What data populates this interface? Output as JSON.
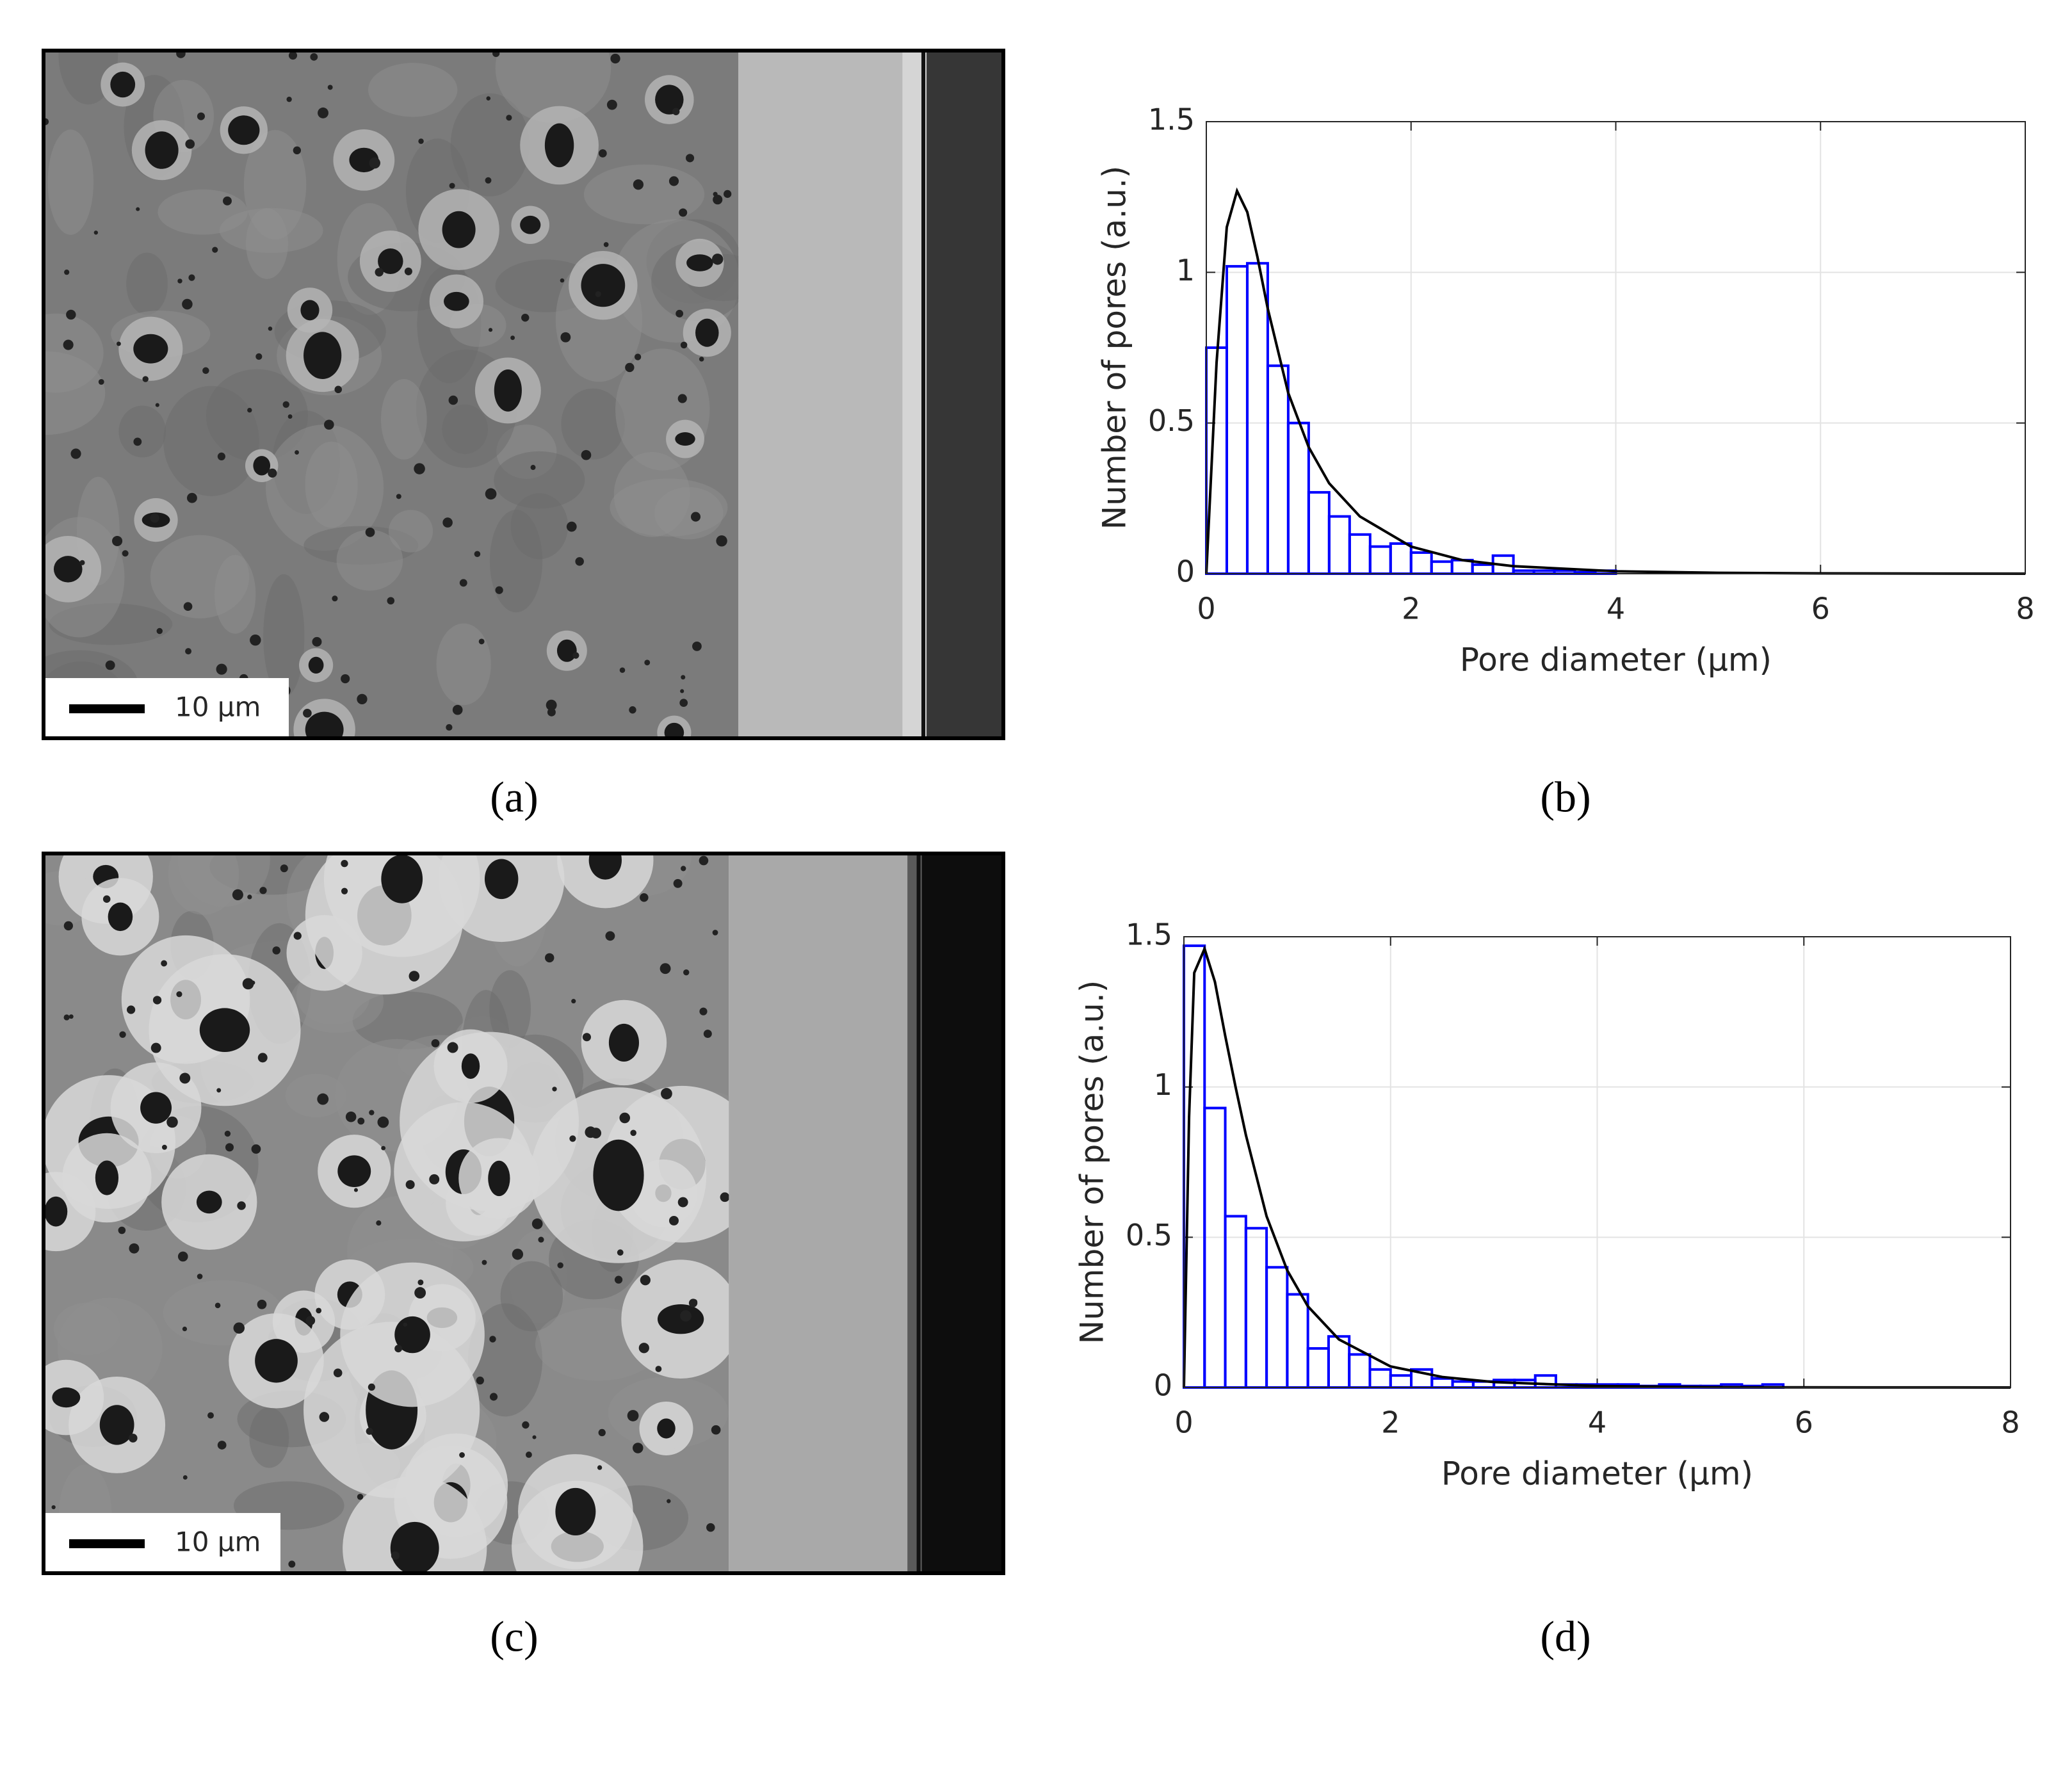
{
  "panels": [
    {
      "label": "(a)",
      "scale_bar": "10 μm"
    },
    {
      "label": "(b)"
    },
    {
      "label": "(c)",
      "scale_bar": "10 μm"
    },
    {
      "label": "(d)"
    }
  ],
  "chart_data": [
    {
      "type": "histogram",
      "xlabel": "Pore diameter (μm)",
      "ylabel": "Number of pores (a.u.)",
      "bins": [
        0,
        0.2,
        0.4,
        0.6,
        0.8,
        1.0,
        1.2,
        1.4,
        1.6,
        1.8,
        2.0,
        2.2,
        2.4,
        2.6,
        2.8,
        3.0,
        3.2,
        3.4,
        3.6,
        3.8,
        4.0
      ],
      "values": [
        0.75,
        1.02,
        1.03,
        0.69,
        0.5,
        0.27,
        0.19,
        0.13,
        0.09,
        0.1,
        0.07,
        0.04,
        0.045,
        0.03,
        0.06,
        0.01,
        0.01,
        0.01,
        0.005,
        0.01
      ],
      "color": "#0000ff",
      "fit": {
        "x": [
          0,
          0.1,
          0.2,
          0.3,
          0.4,
          0.5,
          0.6,
          0.8,
          1.0,
          1.2,
          1.5,
          2,
          2.5,
          3,
          4,
          5,
          6,
          8
        ],
        "values": [
          0,
          0.7,
          1.15,
          1.27,
          1.2,
          1.05,
          0.88,
          0.6,
          0.42,
          0.3,
          0.19,
          0.09,
          0.045,
          0.025,
          0.008,
          0.003,
          0.001,
          0
        ],
        "color": "#000000"
      },
      "xlim": [
        0,
        8
      ],
      "ylim": [
        0,
        1.5
      ],
      "xticks": [
        0,
        2,
        4,
        6,
        8
      ],
      "yticks": [
        0,
        0.5,
        1,
        1.5
      ],
      "grid": true
    },
    {
      "type": "histogram",
      "xlabel": "Pore diameter (μm)",
      "ylabel": "Number of pores (a.u.)",
      "bins": [
        0,
        0.2,
        0.4,
        0.6,
        0.8,
        1.0,
        1.2,
        1.4,
        1.6,
        1.8,
        2.0,
        2.2,
        2.4,
        2.6,
        2.8,
        3.0,
        3.2,
        3.4,
        3.6,
        3.8,
        4.0,
        4.2,
        4.4,
        4.6,
        4.8,
        5.0,
        5.2,
        5.4,
        5.6,
        5.8
      ],
      "values": [
        1.47,
        0.93,
        0.57,
        0.53,
        0.4,
        0.31,
        0.13,
        0.17,
        0.11,
        0.06,
        0.04,
        0.06,
        0.03,
        0.02,
        0.02,
        0.025,
        0.025,
        0.04,
        0.01,
        0.01,
        0.01,
        0.01,
        0.005,
        0.01,
        0.005,
        0.005,
        0.01,
        0.005,
        0.01
      ],
      "color": "#0000ff",
      "fit": {
        "x": [
          0,
          0.05,
          0.1,
          0.2,
          0.3,
          0.4,
          0.5,
          0.6,
          0.8,
          1.0,
          1.2,
          1.5,
          2,
          2.5,
          3,
          4,
          5,
          6,
          8
        ],
        "values": [
          0,
          0.9,
          1.38,
          1.46,
          1.35,
          1.17,
          1.0,
          0.84,
          0.57,
          0.39,
          0.27,
          0.16,
          0.07,
          0.035,
          0.018,
          0.005,
          0.0015,
          0.0005,
          0
        ],
        "color": "#000000"
      },
      "xlim": [
        0,
        8
      ],
      "ylim": [
        0,
        1.5
      ],
      "xticks": [
        0,
        2,
        4,
        6,
        8
      ],
      "yticks": [
        0,
        0.5,
        1,
        1.5
      ],
      "grid": true
    }
  ]
}
